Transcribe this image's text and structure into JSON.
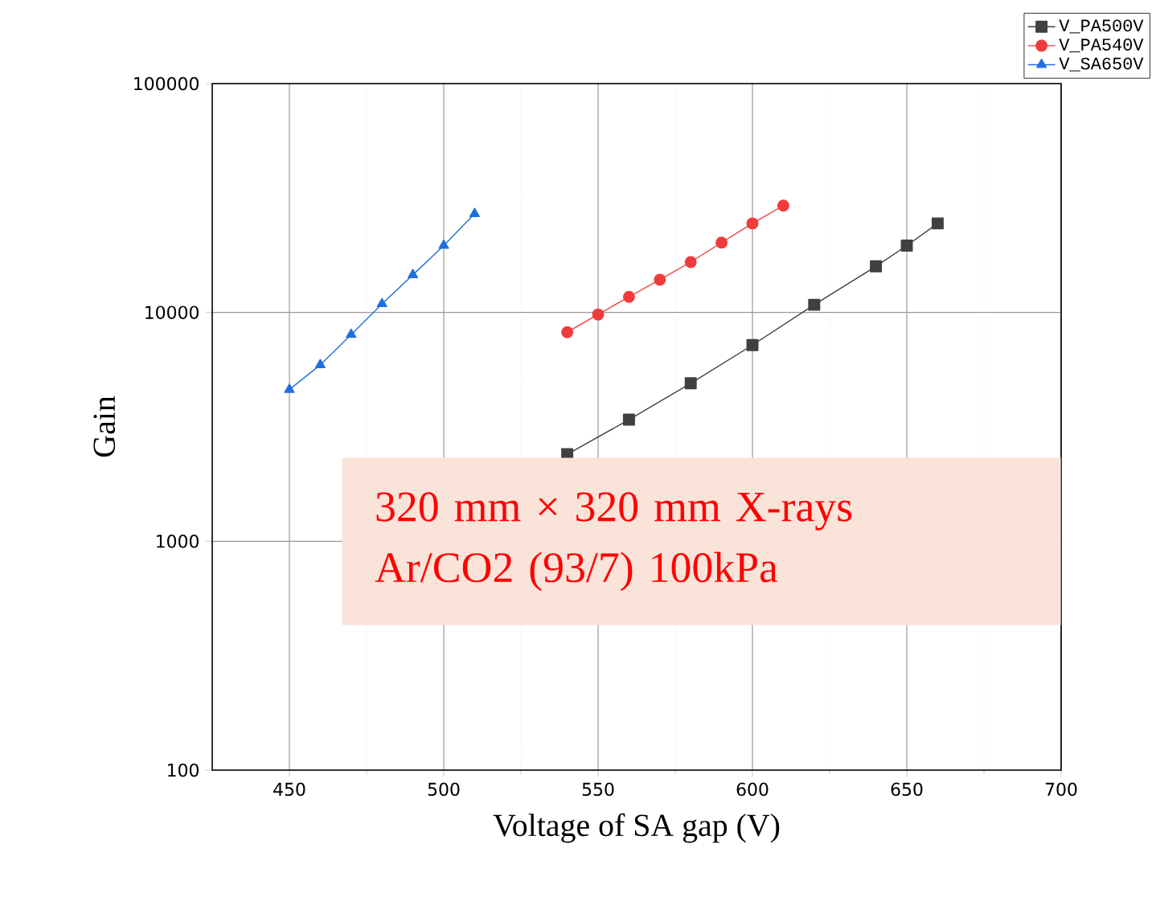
{
  "chart_data": {
    "type": "line",
    "xlabel": "Voltage of  SA gap (V)",
    "ylabel": "Gain",
    "annotations": [
      "320 mm × 320 mm X-rays",
      "Ar/CO2 (93/7)  100kPa"
    ],
    "xlim": [
      425,
      700
    ],
    "xticks": [
      450,
      500,
      550,
      600,
      650,
      700
    ],
    "ylim": [
      100,
      100000
    ],
    "yticks": [
      100,
      1000,
      10000,
      100000
    ],
    "log": "y",
    "grid": true,
    "legend": "top right",
    "line_style": "solid",
    "series": [
      {
        "name": "V_PA500V",
        "color": "#404040",
        "marker": "square",
        "x": [
          540,
          560,
          580,
          600,
          620,
          640,
          650,
          660
        ],
        "values": [
          2400,
          3400,
          4900,
          7200,
          10800,
          15900,
          19600,
          24500
        ]
      },
      {
        "name": "V_PA540V",
        "color": "#f03c3c",
        "marker": "circle",
        "x": [
          540,
          550,
          560,
          570,
          580,
          590,
          600,
          610
        ],
        "values": [
          8200,
          9800,
          11700,
          13900,
          16600,
          20200,
          24500,
          29300
        ]
      },
      {
        "name": "V_SA650V",
        "color": "#1f6fe0",
        "marker": "triangle",
        "x": [
          450,
          460,
          470,
          480,
          490,
          500,
          510
        ],
        "values": [
          4600,
          5900,
          8000,
          10900,
          14600,
          19600,
          27000
        ]
      }
    ]
  }
}
